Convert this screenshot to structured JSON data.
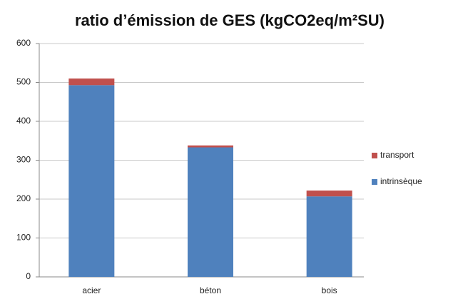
{
  "chart_data": {
    "type": "stacked_bar",
    "title": "ratio d’émission de GES (kgCO2eq/m²SU)",
    "categories": [
      "acier",
      "béton",
      "bois"
    ],
    "series": [
      {
        "name": "intrinsèque",
        "color": "#4f81bd",
        "values": [
          493,
          333,
          207
        ]
      },
      {
        "name": "transport",
        "color": "#c0504d",
        "values": [
          17,
          5,
          15
        ]
      }
    ],
    "ylim": [
      0,
      600
    ],
    "yticks": [
      0,
      100,
      200,
      300,
      400,
      500,
      600
    ],
    "grid": true,
    "legend": "right"
  }
}
